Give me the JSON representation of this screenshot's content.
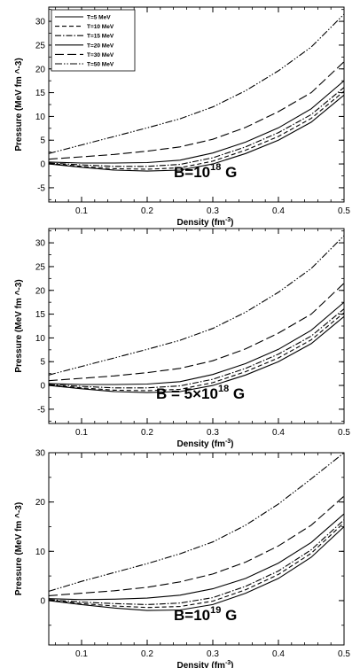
{
  "chart_data": [
    {
      "type": "line",
      "xlabel": "Density (fm",
      "xlabel_sup": "-3",
      "xlabel_end": ")",
      "ylabel": "Pressure (MeV fm ^-3)",
      "annotation": "B=10",
      "annotation_sup": "18",
      "annotation_end": " G",
      "xlim": [
        0.05,
        0.5
      ],
      "ylim": [
        -8,
        33
      ],
      "x_ticks": [
        0.1,
        0.2,
        0.3,
        0.4,
        0.5
      ],
      "x_tick_labels": [
        "0.1",
        "0.2",
        "0.3",
        "0.4",
        "0.5"
      ],
      "y_ticks": [
        -5,
        0,
        5,
        10,
        15,
        20,
        25,
        30
      ],
      "y_tick_labels": [
        "-5",
        "0",
        "5",
        "10",
        "15",
        "20",
        "25",
        "30"
      ],
      "legend_position": "top-left",
      "x": [
        0.05,
        0.1,
        0.15,
        0.2,
        0.25,
        0.3,
        0.35,
        0.4,
        0.45,
        0.5
      ],
      "series": [
        {
          "name": "T=5 MeV",
          "dash": "solid",
          "values": [
            0.0,
            -0.7,
            -1.3,
            -1.5,
            -1.3,
            0.0,
            2.2,
            5.0,
            8.8,
            14.5
          ]
        },
        {
          "name": "T=10 MeV",
          "dash": "dashed",
          "values": [
            0.1,
            -0.5,
            -1.0,
            -1.1,
            -0.8,
            0.6,
            2.9,
            5.8,
            9.6,
            15.3
          ]
        },
        {
          "name": "T=15 MeV",
          "dash": "dashdot",
          "values": [
            0.2,
            -0.2,
            -0.5,
            -0.5,
            -0.1,
            1.3,
            3.6,
            6.6,
            10.4,
            16.1
          ]
        },
        {
          "name": "T=20 MeV",
          "dash": "solid",
          "values": [
            0.4,
            0.2,
            0.2,
            0.3,
            0.8,
            2.3,
            4.6,
            7.6,
            11.6,
            17.5
          ]
        },
        {
          "name": "T=30 MeV",
          "dash": "longdash",
          "values": [
            1.0,
            1.5,
            2.0,
            2.7,
            3.6,
            5.2,
            7.7,
            11.0,
            15.0,
            21.5
          ]
        },
        {
          "name": "T=50 MeV",
          "dash": "dashdotdot",
          "values": [
            2.2,
            4.0,
            5.8,
            7.6,
            9.5,
            12.0,
            15.4,
            19.6,
            24.6,
            31.5
          ]
        }
      ]
    },
    {
      "type": "line",
      "xlabel": "Density (fm",
      "xlabel_sup": "-3",
      "xlabel_end": ")",
      "ylabel": "Pressure (MeV fm ^-3)",
      "annotation": "B = 5×10",
      "annotation_sup": "18",
      "annotation_end": " G",
      "xlim": [
        0.05,
        0.5
      ],
      "ylim": [
        -8,
        33
      ],
      "x_ticks": [
        0.1,
        0.2,
        0.3,
        0.4,
        0.5
      ],
      "x_tick_labels": [
        "0.1",
        "0.2",
        "0.3",
        "0.4",
        "0.5"
      ],
      "y_ticks": [
        -5,
        0,
        5,
        10,
        15,
        20,
        25,
        30
      ],
      "y_tick_labels": [
        "-5",
        "0",
        "5",
        "10",
        "15",
        "20",
        "25",
        "30"
      ],
      "x": [
        0.05,
        0.1,
        0.15,
        0.2,
        0.25,
        0.3,
        0.35,
        0.4,
        0.45,
        0.5
      ],
      "series": [
        {
          "name": "T=5 MeV",
          "dash": "solid",
          "values": [
            0.0,
            -0.7,
            -1.3,
            -1.5,
            -1.3,
            0.0,
            2.2,
            5.0,
            8.8,
            14.5
          ]
        },
        {
          "name": "T=10 MeV",
          "dash": "dashed",
          "values": [
            0.1,
            -0.5,
            -1.0,
            -1.1,
            -0.8,
            0.6,
            2.9,
            5.8,
            9.6,
            15.3
          ]
        },
        {
          "name": "T=15 MeV",
          "dash": "dashdot",
          "values": [
            0.2,
            -0.2,
            -0.5,
            -0.5,
            -0.1,
            1.3,
            3.6,
            6.6,
            10.4,
            16.1
          ]
        },
        {
          "name": "T=20 MeV",
          "dash": "solid",
          "values": [
            0.4,
            0.2,
            0.2,
            0.3,
            0.8,
            2.3,
            4.6,
            7.6,
            11.6,
            17.5
          ]
        },
        {
          "name": "T=30 MeV",
          "dash": "longdash",
          "values": [
            1.0,
            1.5,
            2.0,
            2.7,
            3.6,
            5.2,
            7.7,
            11.0,
            15.0,
            21.5
          ]
        },
        {
          "name": "T=50 MeV",
          "dash": "dashdotdot",
          "values": [
            2.2,
            4.0,
            5.8,
            7.6,
            9.5,
            12.0,
            15.4,
            19.6,
            24.6,
            31.5
          ]
        }
      ]
    },
    {
      "type": "line",
      "xlabel": "Density (fm",
      "xlabel_sup": "-3",
      "xlabel_end": ")",
      "ylabel": "Pressure (MeV fm ^-3)",
      "annotation": "B=10",
      "annotation_sup": "19",
      "annotation_end": " G",
      "xlim": [
        0.05,
        0.5
      ],
      "ylim": [
        -9,
        30
      ],
      "x_ticks": [
        0.1,
        0.2,
        0.3,
        0.4,
        0.5
      ],
      "x_tick_labels": [
        "0.1",
        "0.2",
        "0.3",
        "0.4",
        "0.5"
      ],
      "y_ticks": [
        0,
        10,
        20,
        30
      ],
      "y_tick_labels": [
        "0",
        "10",
        "20",
        "30"
      ],
      "x": [
        0.05,
        0.1,
        0.15,
        0.2,
        0.25,
        0.3,
        0.35,
        0.4,
        0.45,
        0.5
      ],
      "series": [
        {
          "name": "T=5 MeV",
          "dash": "solid",
          "values": [
            0.0,
            -0.8,
            -1.5,
            -2.0,
            -1.9,
            -0.8,
            1.5,
            4.5,
            8.8,
            15.0
          ]
        },
        {
          "name": "T=10 MeV",
          "dash": "dashed",
          "values": [
            0.1,
            -0.6,
            -1.1,
            -1.4,
            -1.2,
            -0.1,
            2.2,
            5.3,
            9.6,
            15.8
          ]
        },
        {
          "name": "T=15 MeV",
          "dash": "dashdot",
          "values": [
            0.2,
            -0.3,
            -0.6,
            -0.8,
            -0.5,
            0.6,
            2.9,
            6.0,
            10.3,
            16.4
          ]
        },
        {
          "name": "T=20 MeV",
          "dash": "solid",
          "values": [
            0.4,
            0.2,
            0.3,
            0.5,
            1.1,
            2.4,
            4.5,
            7.6,
            11.8,
            17.6
          ]
        },
        {
          "name": "T=30 MeV",
          "dash": "longdash",
          "values": [
            1.0,
            1.5,
            2.0,
            2.7,
            3.8,
            5.4,
            7.8,
            11.1,
            15.3,
            21.2
          ]
        },
        {
          "name": "T=50 MeV",
          "dash": "dashdotdot",
          "values": [
            1.9,
            3.9,
            5.7,
            7.5,
            9.5,
            11.9,
            15.3,
            19.6,
            24.7,
            30.0
          ]
        }
      ]
    }
  ]
}
